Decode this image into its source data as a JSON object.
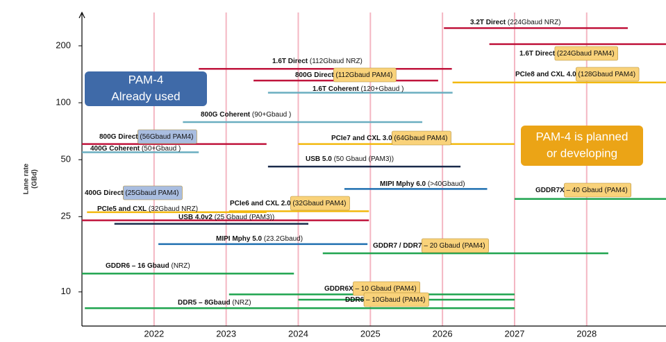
{
  "chart_data": {
    "type": "range",
    "y_label": [
      "Lane rate",
      "(GBd)"
    ],
    "log_y": true,
    "xlim": [
      2021,
      2029.1
    ],
    "xticks": [
      2022,
      2023,
      2024,
      2025,
      2026,
      2027,
      2028
    ],
    "ylim": [
      6.6,
      300
    ],
    "yticks": [
      10,
      25,
      50,
      100,
      200
    ],
    "grid_color": "#f4b6c2",
    "callouts": [
      {
        "lines": [
          "PAM-4",
          "Already used"
        ],
        "color": "#3f6aa8"
      },
      {
        "lines": [
          "PAM-4 is planned",
          "or developing"
        ],
        "color": "#eba416"
      }
    ],
    "items": [
      {
        "bold": "3.2T Direct",
        "detail": "(224Gbaud NRZ)",
        "rate": 248,
        "start": 2026.02,
        "end": 2028.57,
        "color": "#c0143c"
      },
      {
        "bold": "1.6T Direct",
        "detail": "(224Gbaud PAM4)",
        "rate": 204,
        "start": 2026.65,
        "end": 2029.1,
        "color": "#c0143c",
        "box": "#f9d27a"
      },
      {
        "bold": "1.6T Direct",
        "detail": "(112Gbaud NRZ)",
        "rate": 151,
        "start": 2022.62,
        "end": 2026.13,
        "color": "#c0143c"
      },
      {
        "bold": "800G Direct",
        "detail": "(112Gbaud PAM4)",
        "rate": 131,
        "start": 2023.38,
        "end": 2025.94,
        "color": "#c0143c",
        "box": "#f9d27a"
      },
      {
        "bold": "PCIe8 and CXL 4.0",
        "detail": "(128Gbaud PAM4)",
        "rate": 128,
        "start": 2026.14,
        "end": 2029.1,
        "color": "#f2b90f",
        "box": "#f9d27a"
      },
      {
        "bold": "1.6T Coherent",
        "detail": "(120+Gbaud )",
        "rate": 113,
        "start": 2023.58,
        "end": 2026.14,
        "color": "#6aaec0"
      },
      {
        "bold": "800G Coherent",
        "detail": "(90+Gbaud )",
        "rate": 79,
        "start": 2022.4,
        "end": 2025.72,
        "color": "#6aaec0"
      },
      {
        "bold": "800G Direct",
        "detail": "(56Gbaud PAM4)",
        "rate": 60.5,
        "start": 2021,
        "end": 2023.56,
        "color": "#c0143c",
        "box": "#a9bde0"
      },
      {
        "bold": "400G Coherent",
        "detail": "(50+Gbaud )",
        "rate": 54.7,
        "start": 2021,
        "end": 2022.62,
        "color": "#6aaec0"
      },
      {
        "bold": "PCIe7 and CXL 3.0",
        "detail": "(64Gbaud PAM4)",
        "rate": 60.5,
        "start": 2024,
        "end": 2027,
        "color": "#f2b90f",
        "box": "#f9d27a"
      },
      {
        "bold": "USB 5.0",
        "detail": "(50 Gbaud (PAM3))",
        "rate": 46,
        "start": 2023.58,
        "end": 2026.25,
        "color": "#1a2a4a"
      },
      {
        "bold": "MIPI Mphy 6.0",
        "detail": "(>40Gbaud)",
        "rate": 35,
        "start": 2024.64,
        "end": 2026.62,
        "color": "#1f6fb0"
      },
      {
        "bold": "GDDR7X",
        "detail": "– 40 Gbaud (PAM4)",
        "rate": 31,
        "start": 2027,
        "end": 2029.1,
        "color": "#1ea34e",
        "box": "#f9d27a"
      },
      {
        "bold": "400G Direct",
        "detail": "(25Gbaud PAM4)",
        "rate": 23.9,
        "start": 2021,
        "end": 2024.98,
        "color": "#c0143c",
        "box": "#a9bde0"
      },
      {
        "bold": "PCIe5 and CXL",
        "detail": "(32Gbaud NRZ)",
        "rate": 26.4,
        "start": 2021.07,
        "end": 2023.56,
        "color": "#f2b90f"
      },
      {
        "bold": "PCIe6 and CXL 2.0",
        "detail": "(32Gbaud PAM4)",
        "rate": 26.7,
        "start": 2023.04,
        "end": 2024.98,
        "color": "#f2b90f",
        "box": "#f9d27a"
      },
      {
        "bold": "USB 4.0v2",
        "detail": "(25 Gbaud (PAM3))",
        "rate": 22.9,
        "start": 2021.45,
        "end": 2024.14,
        "color": "#1a2a4a"
      },
      {
        "bold": "MIPI Mphy 5.0",
        "detail": "(23.2Gbaud)",
        "rate": 17.9,
        "start": 2022.06,
        "end": 2024.96,
        "color": "#1f6fb0"
      },
      {
        "bold": "GDDR7 / DDR7",
        "detail": "– 20 Gbaud (PAM4)",
        "rate": 16,
        "start": 2024.34,
        "end": 2028.3,
        "color": "#1ea34e",
        "box": "#f9d27a"
      },
      {
        "bold": "GDDR6 – 16 Gbaud",
        "detail": "(NRZ)",
        "rate": 12.5,
        "start": 2021,
        "end": 2023.94,
        "color": "#1ea34e"
      },
      {
        "bold": "GDDR6X",
        "detail": "– 10 Gbaud (PAM4)",
        "rate": 9.7,
        "start": 2023.04,
        "end": 2027,
        "color": "#1ea34e",
        "box": "#f9d27a"
      },
      {
        "bold": "DDR6",
        "detail": "– 10Gbaud (PAM4)",
        "rate": 9.1,
        "start": 2024.0,
        "end": 2027,
        "color": "#1ea34e",
        "box": "#f9d27a"
      },
      {
        "bold": "DDR5 – 8Gbaud",
        "detail": "(NRZ)",
        "rate": 8.2,
        "start": 2021.04,
        "end": 2027,
        "color": "#1ea34e"
      }
    ]
  }
}
